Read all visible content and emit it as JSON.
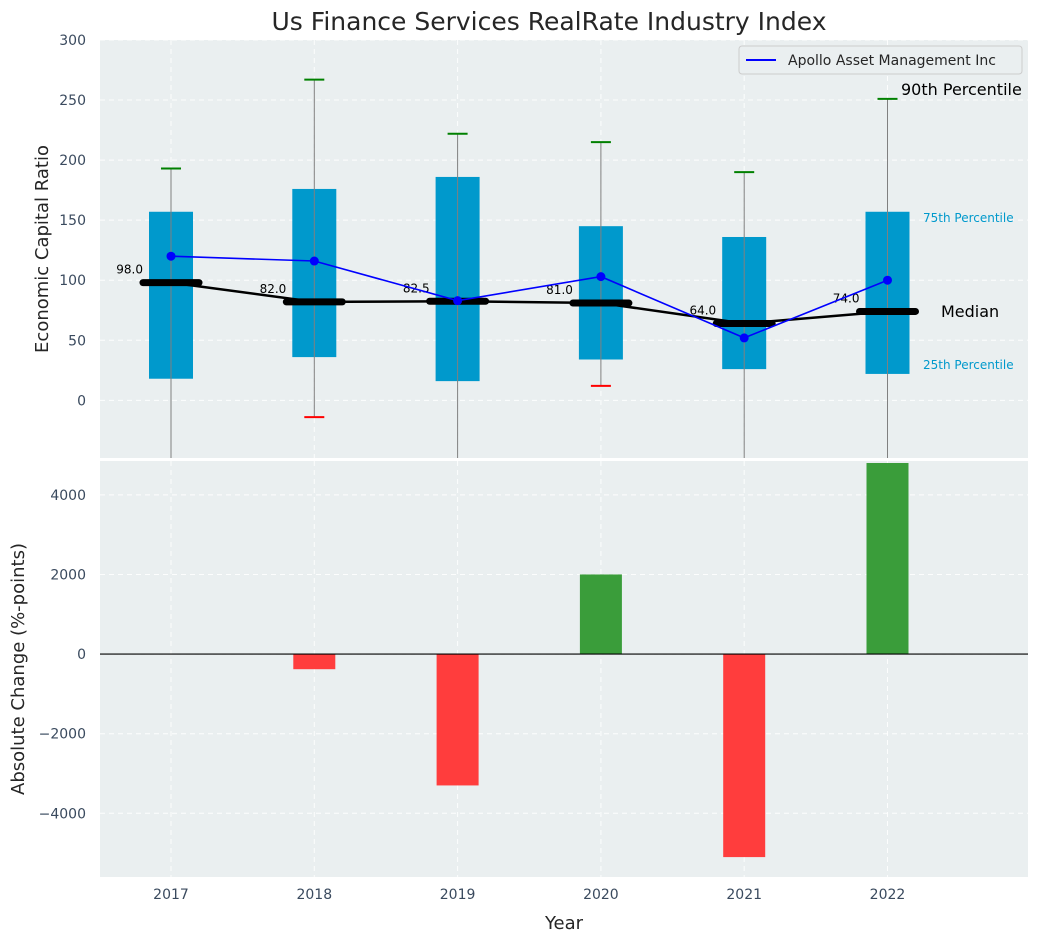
{
  "chart_data": [
    {
      "type": "box",
      "title": "Us Finance Services RealRate Industry Index",
      "ylabel": "Economic Capital Ratio",
      "ylim": [
        -48,
        300
      ],
      "yticks": [
        0,
        50,
        100,
        150,
        200,
        250,
        300
      ],
      "categories": [
        "2017",
        "2018",
        "2019",
        "2020",
        "2021",
        "2022"
      ],
      "p25": [
        18,
        36,
        16,
        34,
        26,
        22
      ],
      "p75": [
        157,
        176,
        186,
        145,
        136,
        157
      ],
      "median": [
        98.0,
        82.0,
        82.5,
        81.0,
        64.0,
        74.0
      ],
      "median_labels": [
        "98.0",
        "82.0",
        "82.5",
        "81.0",
        "64.0",
        "74.0"
      ],
      "p90": [
        193,
        267,
        222,
        215,
        190,
        251
      ],
      "p10": [
        -48,
        -14,
        -48,
        12,
        -48,
        -48
      ],
      "p10_shown": [
        false,
        true,
        false,
        true,
        false,
        false
      ],
      "series": [
        {
          "name": "Apollo Asset Management Inc",
          "values": [
            120,
            116,
            83,
            103,
            52,
            100
          ]
        }
      ],
      "annotations": {
        "p90": "90th Percentile",
        "p75": "75th Percentile",
        "median": "Median",
        "p25": "25th Percentile"
      },
      "legend_position": "top-right",
      "grid": true
    },
    {
      "type": "bar",
      "ylabel": "Absolute Change (%-points)",
      "xlabel": "Year",
      "ylim": [
        -5600,
        4850
      ],
      "yticks": [
        -4000,
        -2000,
        0,
        2000,
        4000
      ],
      "ytick_labels": [
        "−4000",
        "−2000",
        "0",
        "2000",
        "4000"
      ],
      "categories": [
        "2017",
        "2018",
        "2019",
        "2020",
        "2021",
        "2022"
      ],
      "values": [
        0,
        -380,
        -3300,
        2000,
        -5100,
        4800
      ],
      "grid": true
    }
  ],
  "colors": {
    "box": "#0099cc",
    "median": "#000000",
    "series": "#0000ff",
    "whisker": "#808080",
    "p90_cap": "#008000",
    "p10_cap": "#ff0000",
    "pos_bar": "#3a9d3a",
    "neg_bar": "#ff3d3d",
    "panel_bg": "#eaeff0"
  }
}
